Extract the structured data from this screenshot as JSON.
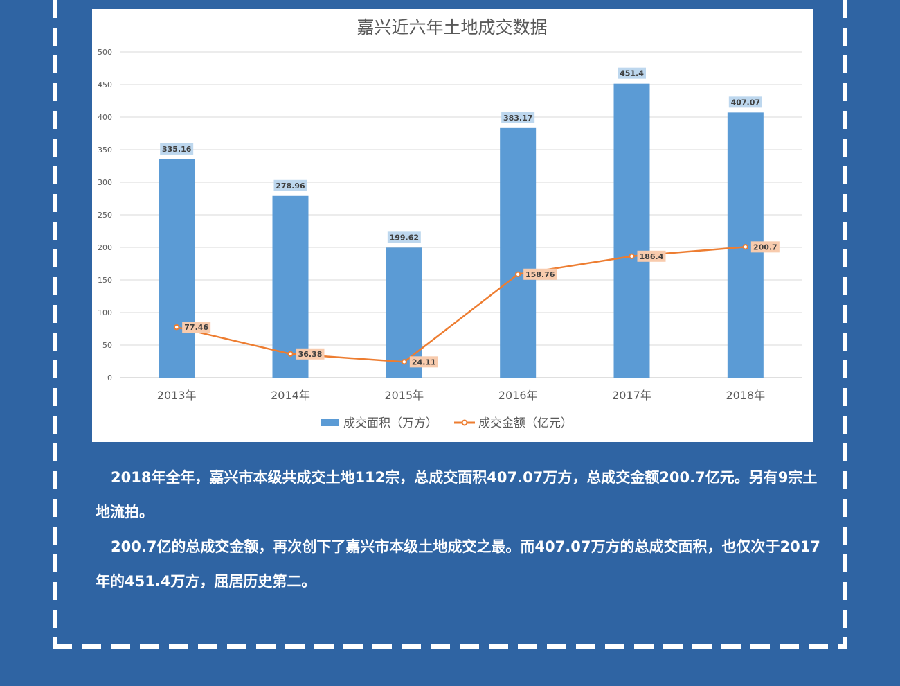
{
  "chart_data": {
    "type": "bar",
    "title": "嘉兴近六年土地成交数据",
    "categories": [
      "2013年",
      "2014年",
      "2015年",
      "2016年",
      "2017年",
      "2018年"
    ],
    "ylim": [
      0,
      500
    ],
    "yticks": [
      0,
      50,
      100,
      150,
      200,
      250,
      300,
      350,
      400,
      450,
      500
    ],
    "grid": true,
    "legend_position": "bottom",
    "series": [
      {
        "name": "成交面积（万方）",
        "type": "bar",
        "color": "#5b9bd5",
        "values": [
          335.16,
          278.96,
          199.62,
          383.17,
          451.4,
          407.07
        ],
        "labels": [
          "335.16",
          "278.96",
          "199.62",
          "383.17",
          "451.4",
          "407.07"
        ]
      },
      {
        "name": "成交金额（亿元）",
        "type": "line",
        "color": "#ed7d31",
        "values": [
          77.46,
          36.38,
          24.11,
          158.76,
          186.4,
          200.7
        ],
        "labels": [
          "77.46",
          "36.38",
          "24.11",
          "158.76",
          "186.4",
          "200.7"
        ]
      }
    ]
  },
  "article": {
    "p1": "2018年全年，嘉兴市本级共成交土地112宗，总成交面积407.07万方，总成交金额200.7亿元。另有9宗土地流拍。",
    "p2": "200.7亿的总成交金额，再次创下了嘉兴市本级土地成交之最。而407.07万方的总成交面积，也仅次于2017年的451.4万方，屈居历史第二。"
  },
  "colors": {
    "background": "#2f64a3",
    "border_dash": "#ffffff",
    "bar": "#5b9bd5",
    "line": "#ed7d31"
  }
}
